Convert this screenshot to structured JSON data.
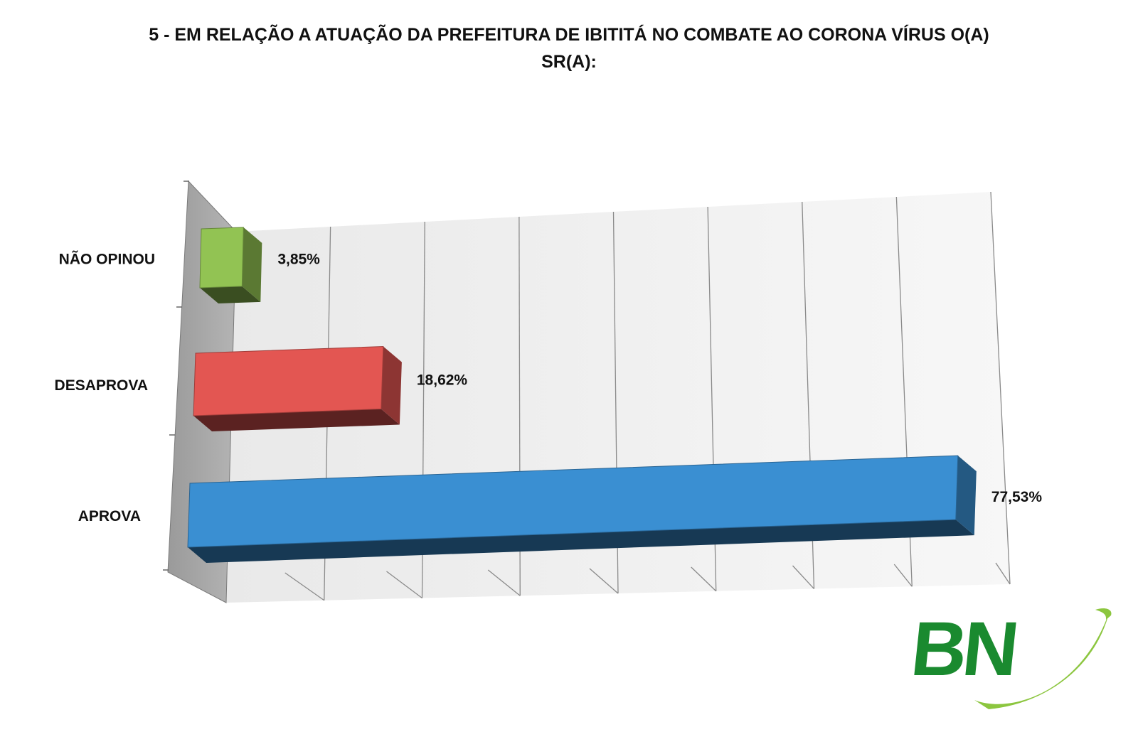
{
  "chart_data": {
    "type": "bar",
    "orientation": "horizontal",
    "title_lines": [
      "5 - EM RELAÇÃO A ATUAÇÃO DA PREFEITURA DE IBITITÁ NO COMBATE AO CORONA VÍRUS O(A)",
      "SR(A):"
    ],
    "categories": [
      "NÃO OPINOU",
      "DESAPROVA",
      "APROVA"
    ],
    "values": [
      3.85,
      18.62,
      77.53
    ],
    "value_labels": [
      "3,85%",
      "18,62%",
      "77,53%"
    ],
    "colors": [
      "#92c353",
      "#e35652",
      "#3a8fd2"
    ],
    "xlim": [
      0,
      80
    ],
    "grid": true,
    "legend": "none",
    "style": "3d"
  },
  "logo": {
    "text": "BN",
    "colors": [
      "#1a8a2f",
      "#8cc63f"
    ]
  }
}
